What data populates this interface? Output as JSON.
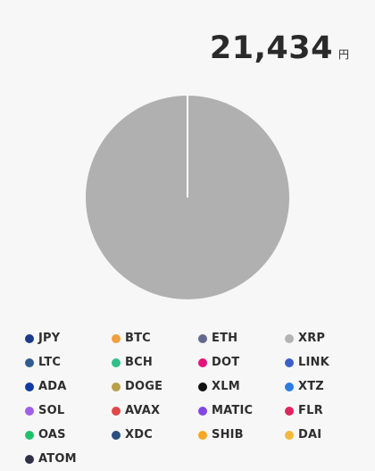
{
  "total": {
    "value": "21,434",
    "unit": "円"
  },
  "chart_data": {
    "type": "pie",
    "title": "",
    "slices": [
      {
        "label": "XRP",
        "value": 100
      }
    ],
    "separator_angle_deg": 0,
    "slice_color": "#b0b0b0",
    "separator_color": "#ffffff",
    "legend_placement": "bottom",
    "legend": [
      {
        "label": "JPY",
        "color": "#1a3a8a"
      },
      {
        "label": "BTC",
        "color": "#f0a03c"
      },
      {
        "label": "ETH",
        "color": "#646a8e"
      },
      {
        "label": "XRP",
        "color": "#b4b4b4"
      },
      {
        "label": "LTC",
        "color": "#2f5d8e"
      },
      {
        "label": "BCH",
        "color": "#2fbf8a"
      },
      {
        "label": "DOT",
        "color": "#e6127a"
      },
      {
        "label": "LINK",
        "color": "#3c5fc8"
      },
      {
        "label": "ADA",
        "color": "#0f3aa6"
      },
      {
        "label": "DOGE",
        "color": "#b8a048"
      },
      {
        "label": "XLM",
        "color": "#111111"
      },
      {
        "label": "XTZ",
        "color": "#2c7be5"
      },
      {
        "label": "SOL",
        "color": "#a35ee8"
      },
      {
        "label": "AVAX",
        "color": "#e04848"
      },
      {
        "label": "MATIC",
        "color": "#8247e5"
      },
      {
        "label": "FLR",
        "color": "#e0245e"
      },
      {
        "label": "OAS",
        "color": "#1fc26a"
      },
      {
        "label": "XDC",
        "color": "#2a4f80"
      },
      {
        "label": "SHIB",
        "color": "#f5a623"
      },
      {
        "label": "DAI",
        "color": "#f5b83a"
      },
      {
        "label": "ATOM",
        "color": "#2e3148"
      }
    ]
  }
}
